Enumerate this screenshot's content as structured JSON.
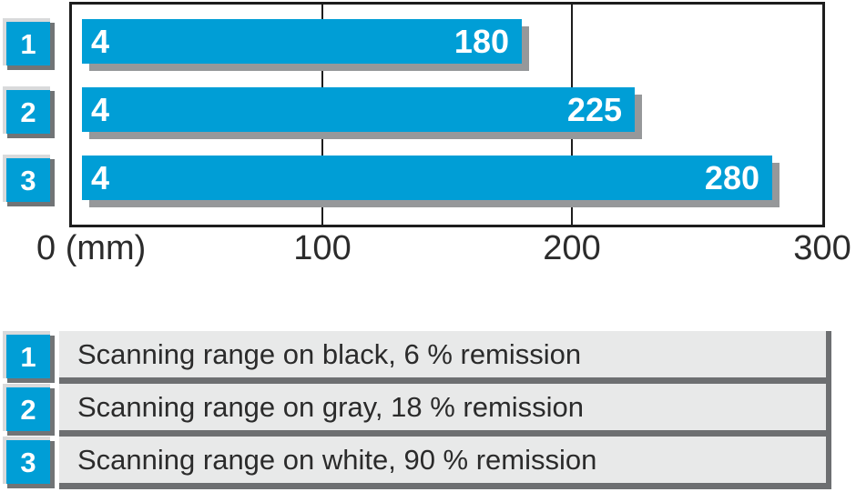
{
  "colors": {
    "bar_blue": "#009ed6",
    "bar_shadow": "#96989a",
    "cube_highlight": "#d9dadb",
    "cube_shadow": "#717476",
    "legend_row_bg": "#e8e9e9",
    "legend_row_border": "#6d6f71",
    "axis_line": "#1d1d1d",
    "text": "#2b2b2b",
    "bar_label_text": "#ffffff"
  },
  "chart_data": {
    "type": "bar",
    "orientation": "horizontal",
    "unit": "mm",
    "grid": "on",
    "x_axis": {
      "origin_label": "0 (mm)",
      "range": [
        0,
        300
      ],
      "gridlines": [
        100,
        200
      ],
      "ticks": [
        {
          "value": 100,
          "label": "100"
        },
        {
          "value": 200,
          "label": "200"
        },
        {
          "value": 300,
          "label": "300"
        }
      ]
    },
    "bars": [
      {
        "row": "1",
        "start": 4,
        "start_label": "4",
        "value": 180,
        "value_label": "180"
      },
      {
        "row": "2",
        "start": 4,
        "start_label": "4",
        "value": 225,
        "value_label": "225"
      },
      {
        "row": "3",
        "start": 4,
        "start_label": "4",
        "value": 280,
        "value_label": "280"
      }
    ]
  },
  "legend": {
    "items": [
      {
        "number": "1",
        "label": "Scanning range on black, 6 % remission"
      },
      {
        "number": "2",
        "label": "Scanning range on gray, 18 % remission"
      },
      {
        "number": "3",
        "label": "Scanning range on white, 90 % remission"
      }
    ]
  }
}
